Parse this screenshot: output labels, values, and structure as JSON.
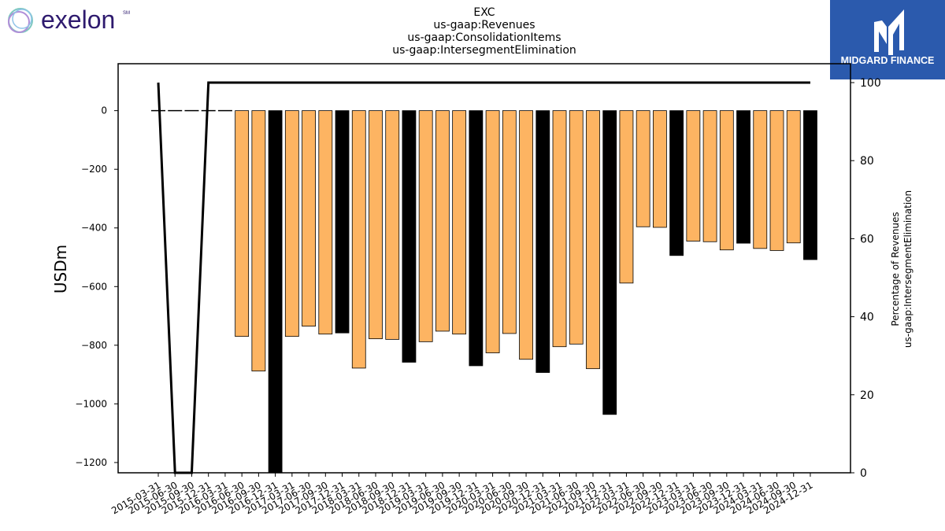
{
  "header": {
    "left_logo_text": "exelon",
    "left_logo_mark": "SM",
    "right_logo_text": "MIDGARD FINANCE"
  },
  "colors": {
    "bar_normal": "#fdb462",
    "bar_q4": "#000000",
    "line": "#000000",
    "right_logo_bg": "#2b5aad",
    "left_logo_text": "#2e1a6e"
  },
  "chart_data": {
    "type": "bar",
    "title_lines": [
      "EXC",
      "us-gaap:Revenues",
      "us-gaap:ConsolidationItems",
      "us-gaap:IntersegmentElimination"
    ],
    "ylabel": "USDm",
    "ylabel2_lines": [
      "Percentage of Revenues",
      "us-gaap:IntersegmentElimination"
    ],
    "ylim": [
      -1235,
      160
    ],
    "y2lim": [
      0,
      100
    ],
    "yticks": [
      0,
      -200,
      -400,
      -600,
      -800,
      -1000,
      -1200
    ],
    "yticklabels": [
      "0",
      "−200",
      "−400",
      "−600",
      "−800",
      "−1000",
      "−1200"
    ],
    "y2ticks": [
      0,
      20,
      40,
      60,
      80,
      100
    ],
    "categories": [
      "2015-03-31",
      "2015-06-30",
      "2015-09-30",
      "2015-12-31",
      "2016-03-31",
      "2016-06-30",
      "2016-09-30",
      "2016-12-31",
      "2017-03-31",
      "2017-06-30",
      "2017-09-30",
      "2017-12-31",
      "2018-03-31",
      "2018-06-30",
      "2018-09-30",
      "2018-12-31",
      "2019-03-31",
      "2019-06-30",
      "2019-09-30",
      "2019-12-31",
      "2020-03-31",
      "2020-06-30",
      "2020-09-30",
      "2020-12-31",
      "2021-03-31",
      "2021-06-30",
      "2021-09-30",
      "2021-12-31",
      "2022-03-31",
      "2022-06-30",
      "2022-09-30",
      "2022-12-31",
      "2023-03-31",
      "2023-06-30",
      "2023-09-30",
      "2023-12-31",
      "2024-03-31",
      "2024-06-30",
      "2024-09-30",
      "2024-12-31"
    ],
    "values": [
      null,
      null,
      null,
      null,
      null,
      -770,
      -888,
      -1235,
      -770,
      -735,
      -762,
      -758,
      -878,
      -778,
      -780,
      -858,
      -788,
      -752,
      -762,
      -870,
      -826,
      -760,
      -848,
      -893,
      -805,
      -796,
      -880,
      -1036,
      -588,
      -396,
      -398,
      -494,
      -445,
      -447,
      -475,
      -452,
      -470,
      -477,
      -451,
      -508
    ],
    "q4_flags": [
      false,
      false,
      false,
      true,
      false,
      false,
      false,
      true,
      false,
      false,
      false,
      true,
      false,
      false,
      false,
      true,
      false,
      false,
      false,
      true,
      false,
      false,
      false,
      true,
      false,
      false,
      false,
      true,
      false,
      false,
      false,
      true,
      false,
      false,
      false,
      true,
      false,
      false,
      false,
      true
    ],
    "zero_markers": [
      "2015-03-31",
      "2015-06-30",
      "2015-09-30",
      "2015-12-31",
      "2016-03-31"
    ],
    "line_series": {
      "name": "Percentage of Revenues",
      "values": [
        100,
        0,
        0,
        100,
        100,
        100,
        100,
        100,
        100,
        100,
        100,
        100,
        100,
        100,
        100,
        100,
        100,
        100,
        100,
        100,
        100,
        100,
        100,
        100,
        100,
        100,
        100,
        100,
        100,
        100,
        100,
        100,
        100,
        100,
        100,
        100,
        100,
        100,
        100,
        100
      ]
    },
    "grid": false
  }
}
